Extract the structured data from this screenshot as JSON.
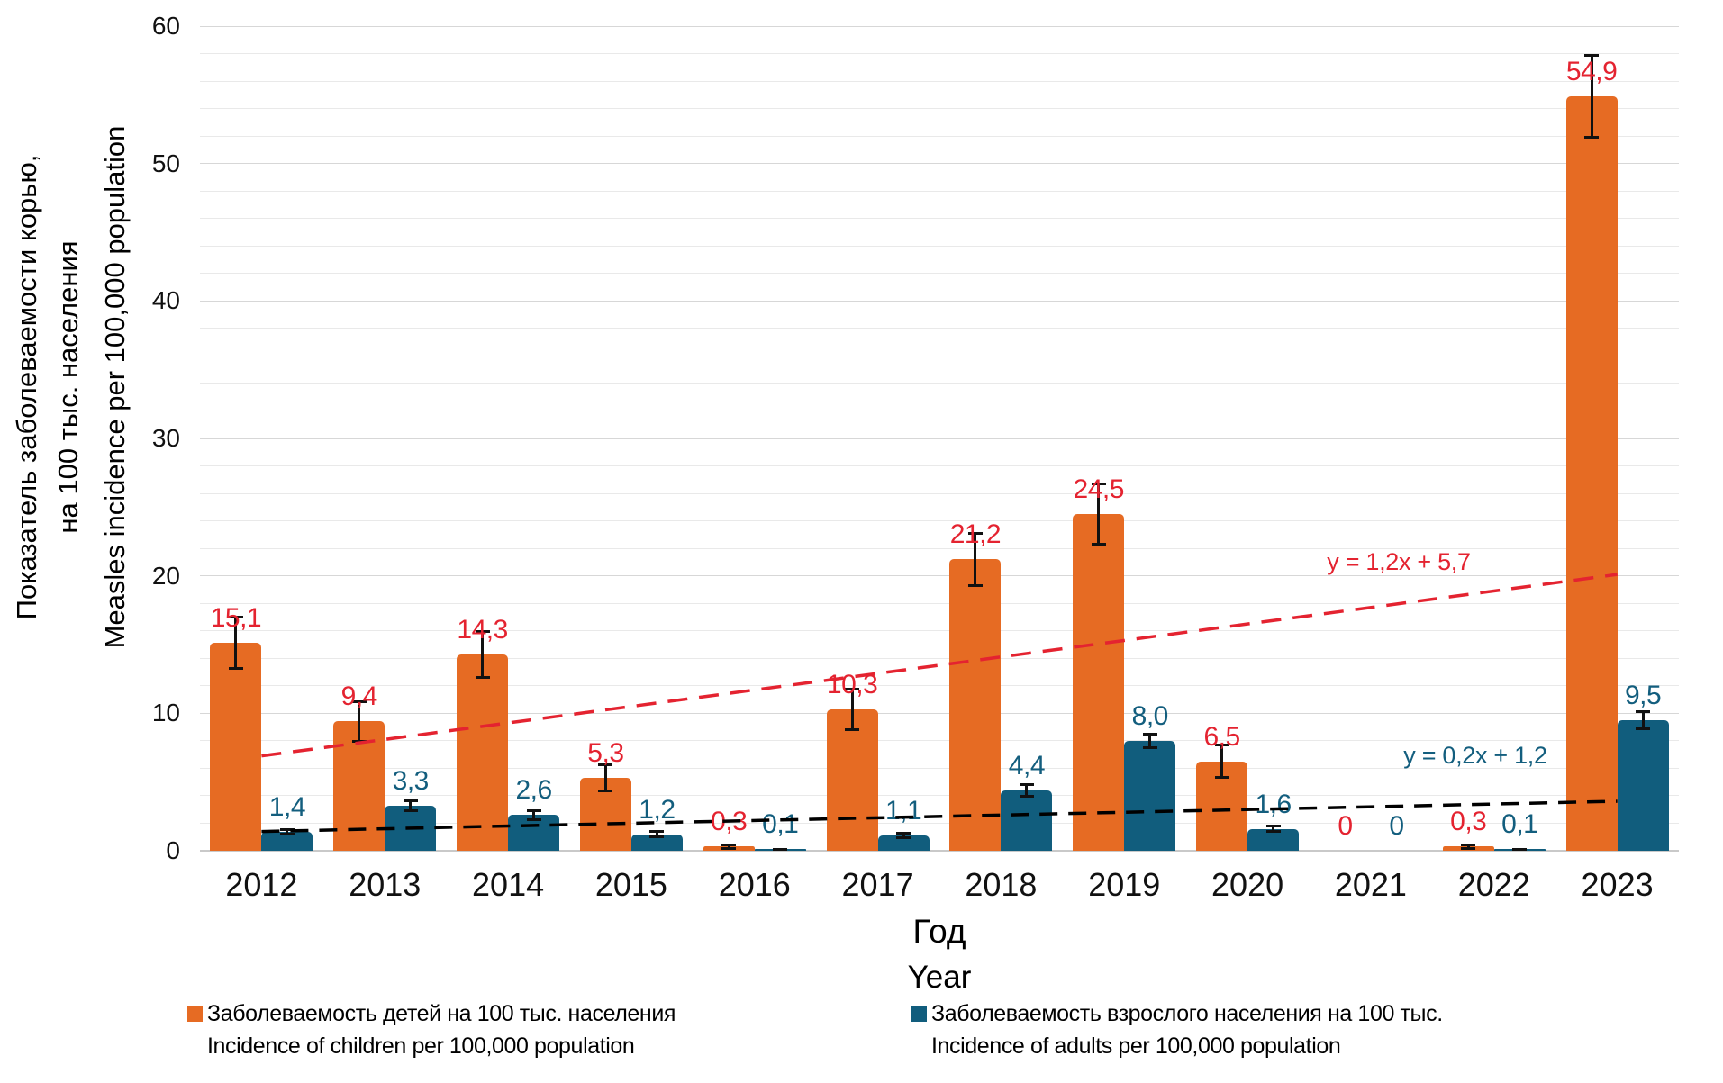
{
  "chart_data": {
    "type": "bar",
    "categories": [
      "2012",
      "2013",
      "2014",
      "2015",
      "2016",
      "2017",
      "2018",
      "2019",
      "2020",
      "2021",
      "2022",
      "2023"
    ],
    "series": [
      {
        "name_ru": "Заболеваемость детей на 100 тыс. населения",
        "name_en": "Incidence of children per 100,000 population",
        "color": "#E66B23",
        "label_color": "#E42330",
        "values": [
          15.1,
          9.4,
          14.3,
          5.3,
          0.3,
          10.3,
          21.2,
          24.5,
          6.5,
          0,
          0.3,
          54.9
        ],
        "labels": [
          "15,1",
          "9,4",
          "14,3",
          "5,3",
          "0,3",
          "10,3",
          "21,2",
          "24,5",
          "6,5",
          "0",
          "0,3",
          "54,9"
        ],
        "errors": [
          1.9,
          1.5,
          1.7,
          1.0,
          0.15,
          1.5,
          1.95,
          2.2,
          1.2,
          0,
          0.15,
          3.0
        ]
      },
      {
        "name_ru": "Заболеваемость взрослого населения на 100 тыс.",
        "name_en": "Incidence of adults per 100,000 population",
        "color": "#115D7D",
        "label_color": "#135E7E",
        "values": [
          1.4,
          3.3,
          2.6,
          1.2,
          0.1,
          1.1,
          4.4,
          8.0,
          1.6,
          0,
          0.1,
          9.5
        ],
        "labels": [
          "1,4",
          "3,3",
          "2,6",
          "1,2",
          "0,1",
          "1,1",
          "4,4",
          "8,0",
          "1,6",
          "0",
          "0,1",
          "9,5"
        ],
        "errors": [
          0.2,
          0.4,
          0.35,
          0.25,
          0.06,
          0.2,
          0.45,
          0.5,
          0.25,
          0,
          0.06,
          0.65
        ]
      }
    ],
    "trendlines": [
      {
        "equation": "y = 1,2x + 5,7",
        "slope": 1.2,
        "intercept": 5.7,
        "line_color": "#E42330",
        "label_color": "#E42330",
        "dash": "22 13"
      },
      {
        "equation": "y = 0,2x + 1,2",
        "slope": 0.2,
        "intercept": 1.2,
        "line_color": "#000000",
        "label_color": "#135E7E",
        "dash": "20 12"
      }
    ],
    "ylim": [
      0,
      60
    ],
    "ytick_step": 10,
    "grid_step": 2,
    "y_ticks": [
      "0",
      "10",
      "20",
      "30",
      "40",
      "50",
      "60"
    ],
    "grid": true,
    "legend_position": "bottom",
    "xlabel_ru": "Год",
    "xlabel_en": "Year",
    "ylabel_ru_line1": "Показатель заболеваемости корью,",
    "ylabel_ru_line2": "на 100 тыс. населения",
    "ylabel_en": "Measles incidence per 100,000 population"
  }
}
